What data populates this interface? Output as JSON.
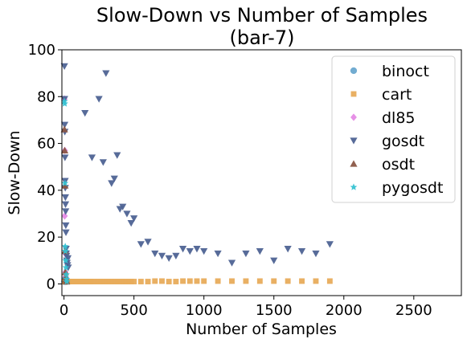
{
  "chart_data": {
    "type": "scatter",
    "title": "Slow-Down vs Number of Samples",
    "subtitle": "(bar-7)",
    "xlabel": "Number of Samples",
    "ylabel": "Slow-Down",
    "xlim": [
      -15,
      2840
    ],
    "ylim": [
      -5,
      100
    ],
    "xticks": [
      0,
      500,
      1000,
      1500,
      2000,
      2500
    ],
    "yticks": [
      0,
      20,
      40,
      60,
      80,
      100
    ],
    "grid": false,
    "legend_position": "top-right",
    "series": [
      {
        "name": "binoct",
        "marker": "circle",
        "color": "#6aa8cf",
        "points": [
          [
            3,
            1
          ],
          [
            5,
            2
          ],
          [
            7,
            1.5
          ],
          [
            10,
            1
          ],
          [
            12,
            2.5
          ],
          [
            15,
            1
          ]
        ]
      },
      {
        "name": "cart",
        "marker": "square",
        "color": "#e8ac5b",
        "points": [
          [
            5,
            1
          ],
          [
            10,
            1
          ],
          [
            15,
            1
          ],
          [
            20,
            1
          ],
          [
            25,
            1
          ],
          [
            30,
            1
          ],
          [
            35,
            1
          ],
          [
            40,
            1
          ],
          [
            45,
            1
          ],
          [
            50,
            1
          ],
          [
            55,
            1
          ],
          [
            60,
            1
          ],
          [
            65,
            1
          ],
          [
            70,
            1
          ],
          [
            75,
            1
          ],
          [
            80,
            1
          ],
          [
            85,
            1
          ],
          [
            90,
            1
          ],
          [
            95,
            1
          ],
          [
            100,
            1
          ],
          [
            110,
            1
          ],
          [
            120,
            1
          ],
          [
            130,
            1
          ],
          [
            140,
            1
          ],
          [
            150,
            1
          ],
          [
            160,
            1
          ],
          [
            170,
            1
          ],
          [
            180,
            1
          ],
          [
            190,
            1
          ],
          [
            200,
            1
          ],
          [
            220,
            1
          ],
          [
            240,
            1
          ],
          [
            260,
            1
          ],
          [
            280,
            1
          ],
          [
            300,
            1
          ],
          [
            320,
            1
          ],
          [
            340,
            1
          ],
          [
            360,
            1
          ],
          [
            380,
            1
          ],
          [
            400,
            1
          ],
          [
            420,
            1
          ],
          [
            440,
            1
          ],
          [
            460,
            1
          ],
          [
            480,
            1
          ],
          [
            500,
            1
          ],
          [
            550,
            1
          ],
          [
            600,
            1
          ],
          [
            650,
            1.2
          ],
          [
            700,
            1.2
          ],
          [
            750,
            1
          ],
          [
            800,
            1
          ],
          [
            850,
            1.2
          ],
          [
            900,
            1.2
          ],
          [
            950,
            1.2
          ],
          [
            1000,
            1.2
          ],
          [
            1100,
            1.2
          ],
          [
            1200,
            1.2
          ],
          [
            1300,
            1.2
          ],
          [
            1400,
            1.2
          ],
          [
            1500,
            1.2
          ],
          [
            1600,
            1.2
          ],
          [
            1700,
            1.2
          ],
          [
            1800,
            1.2
          ],
          [
            1900,
            1.2
          ]
        ]
      },
      {
        "name": "dl85",
        "marker": "diamond",
        "color": "#e58ae5",
        "points": [
          [
            3,
            79
          ],
          [
            5,
            29
          ],
          [
            6,
            57
          ],
          [
            8,
            13
          ],
          [
            10,
            5
          ],
          [
            12,
            3
          ],
          [
            15,
            2
          ]
        ]
      },
      {
        "name": "gosdt",
        "marker": "triangle-down",
        "color": "#4e6394",
        "points": [
          [
            3,
            93
          ],
          [
            4,
            79
          ],
          [
            5,
            68
          ],
          [
            6,
            65
          ],
          [
            7,
            54
          ],
          [
            8,
            44
          ],
          [
            9,
            41
          ],
          [
            10,
            37
          ],
          [
            11,
            34
          ],
          [
            12,
            31
          ],
          [
            13,
            25
          ],
          [
            14,
            22
          ],
          [
            15,
            15
          ],
          [
            16,
            13
          ],
          [
            18,
            12
          ],
          [
            20,
            10
          ],
          [
            22,
            9
          ],
          [
            25,
            8
          ],
          [
            28,
            11
          ],
          [
            30,
            7
          ],
          [
            150,
            73
          ],
          [
            200,
            54
          ],
          [
            250,
            79
          ],
          [
            280,
            52
          ],
          [
            300,
            90
          ],
          [
            340,
            43
          ],
          [
            360,
            45
          ],
          [
            380,
            55
          ],
          [
            400,
            32
          ],
          [
            420,
            33
          ],
          [
            450,
            30
          ],
          [
            480,
            26
          ],
          [
            500,
            28
          ],
          [
            550,
            17
          ],
          [
            600,
            18
          ],
          [
            650,
            13
          ],
          [
            700,
            12
          ],
          [
            750,
            11
          ],
          [
            800,
            12
          ],
          [
            850,
            15
          ],
          [
            900,
            14
          ],
          [
            950,
            15
          ],
          [
            1000,
            14
          ],
          [
            1100,
            13
          ],
          [
            1200,
            9
          ],
          [
            1300,
            13
          ],
          [
            1400,
            14
          ],
          [
            1500,
            10
          ],
          [
            1600,
            15
          ],
          [
            1700,
            14
          ],
          [
            1800,
            13
          ],
          [
            1900,
            17
          ]
        ]
      },
      {
        "name": "osdt",
        "marker": "triangle-up",
        "color": "#8b5746",
        "points": [
          [
            3,
            66
          ],
          [
            5,
            57
          ],
          [
            7,
            42
          ],
          [
            8,
            14
          ],
          [
            10,
            5
          ],
          [
            12,
            3
          ],
          [
            14,
            2
          ],
          [
            16,
            1.5
          ],
          [
            18,
            1
          ]
        ]
      },
      {
        "name": "pygosdt",
        "marker": "star",
        "color": "#36c2d2",
        "points": [
          [
            3,
            78
          ],
          [
            5,
            77
          ],
          [
            7,
            43
          ],
          [
            9,
            16
          ],
          [
            10,
            14
          ],
          [
            12,
            10
          ],
          [
            14,
            7
          ],
          [
            16,
            4
          ],
          [
            18,
            2
          ],
          [
            20,
            1
          ]
        ]
      }
    ]
  }
}
